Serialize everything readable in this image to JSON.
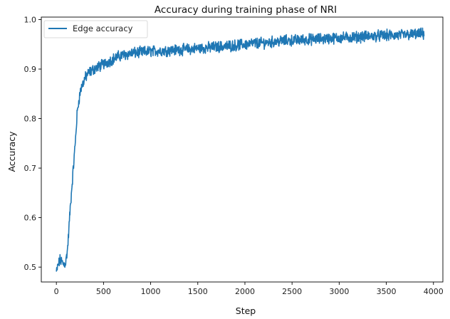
{
  "chart_data": {
    "type": "line",
    "title": "Accuracy during training phase of NRI",
    "xlabel": "Step",
    "ylabel": "Accuracy",
    "xlim": [
      -160,
      4100
    ],
    "ylim": [
      0.47,
      1.005
    ],
    "xticks": [
      0,
      500,
      1000,
      1500,
      2000,
      2500,
      3000,
      3500,
      4000
    ],
    "yticks": [
      0.5,
      0.6,
      0.7,
      0.8,
      0.9,
      1.0
    ],
    "xtick_labels": [
      "0",
      "500",
      "1000",
      "1500",
      "2000",
      "2500",
      "3000",
      "3500",
      "4000"
    ],
    "ytick_labels": [
      "0.5",
      "0.6",
      "0.7",
      "0.8",
      "0.9",
      "1.0"
    ],
    "grid": false,
    "legend_position": "top-left",
    "series": [
      {
        "name": "Edge accuracy",
        "color": "#1f77b4",
        "noise_amplitude": 0.009,
        "x": [
          0,
          20,
          40,
          60,
          80,
          100,
          120,
          140,
          160,
          180,
          200,
          220,
          240,
          260,
          280,
          300,
          330,
          360,
          400,
          450,
          500,
          550,
          600,
          650,
          700,
          800,
          900,
          1000,
          1100,
          1200,
          1300,
          1400,
          1500,
          1600,
          1700,
          1800,
          1900,
          2000,
          2100,
          2200,
          2300,
          2400,
          2500,
          2600,
          2700,
          2800,
          2900,
          3000,
          3100,
          3200,
          3300,
          3400,
          3500,
          3600,
          3700,
          3800,
          3900
        ],
        "values": [
          0.49,
          0.505,
          0.515,
          0.51,
          0.505,
          0.51,
          0.54,
          0.6,
          0.65,
          0.7,
          0.75,
          0.81,
          0.84,
          0.86,
          0.87,
          0.88,
          0.89,
          0.895,
          0.9,
          0.905,
          0.91,
          0.915,
          0.92,
          0.925,
          0.928,
          0.932,
          0.934,
          0.936,
          0.937,
          0.938,
          0.939,
          0.94,
          0.942,
          0.943,
          0.945,
          0.946,
          0.948,
          0.95,
          0.952,
          0.953,
          0.955,
          0.957,
          0.958,
          0.959,
          0.96,
          0.961,
          0.962,
          0.963,
          0.964,
          0.965,
          0.966,
          0.967,
          0.968,
          0.968,
          0.969,
          0.97,
          0.971
        ]
      }
    ]
  }
}
